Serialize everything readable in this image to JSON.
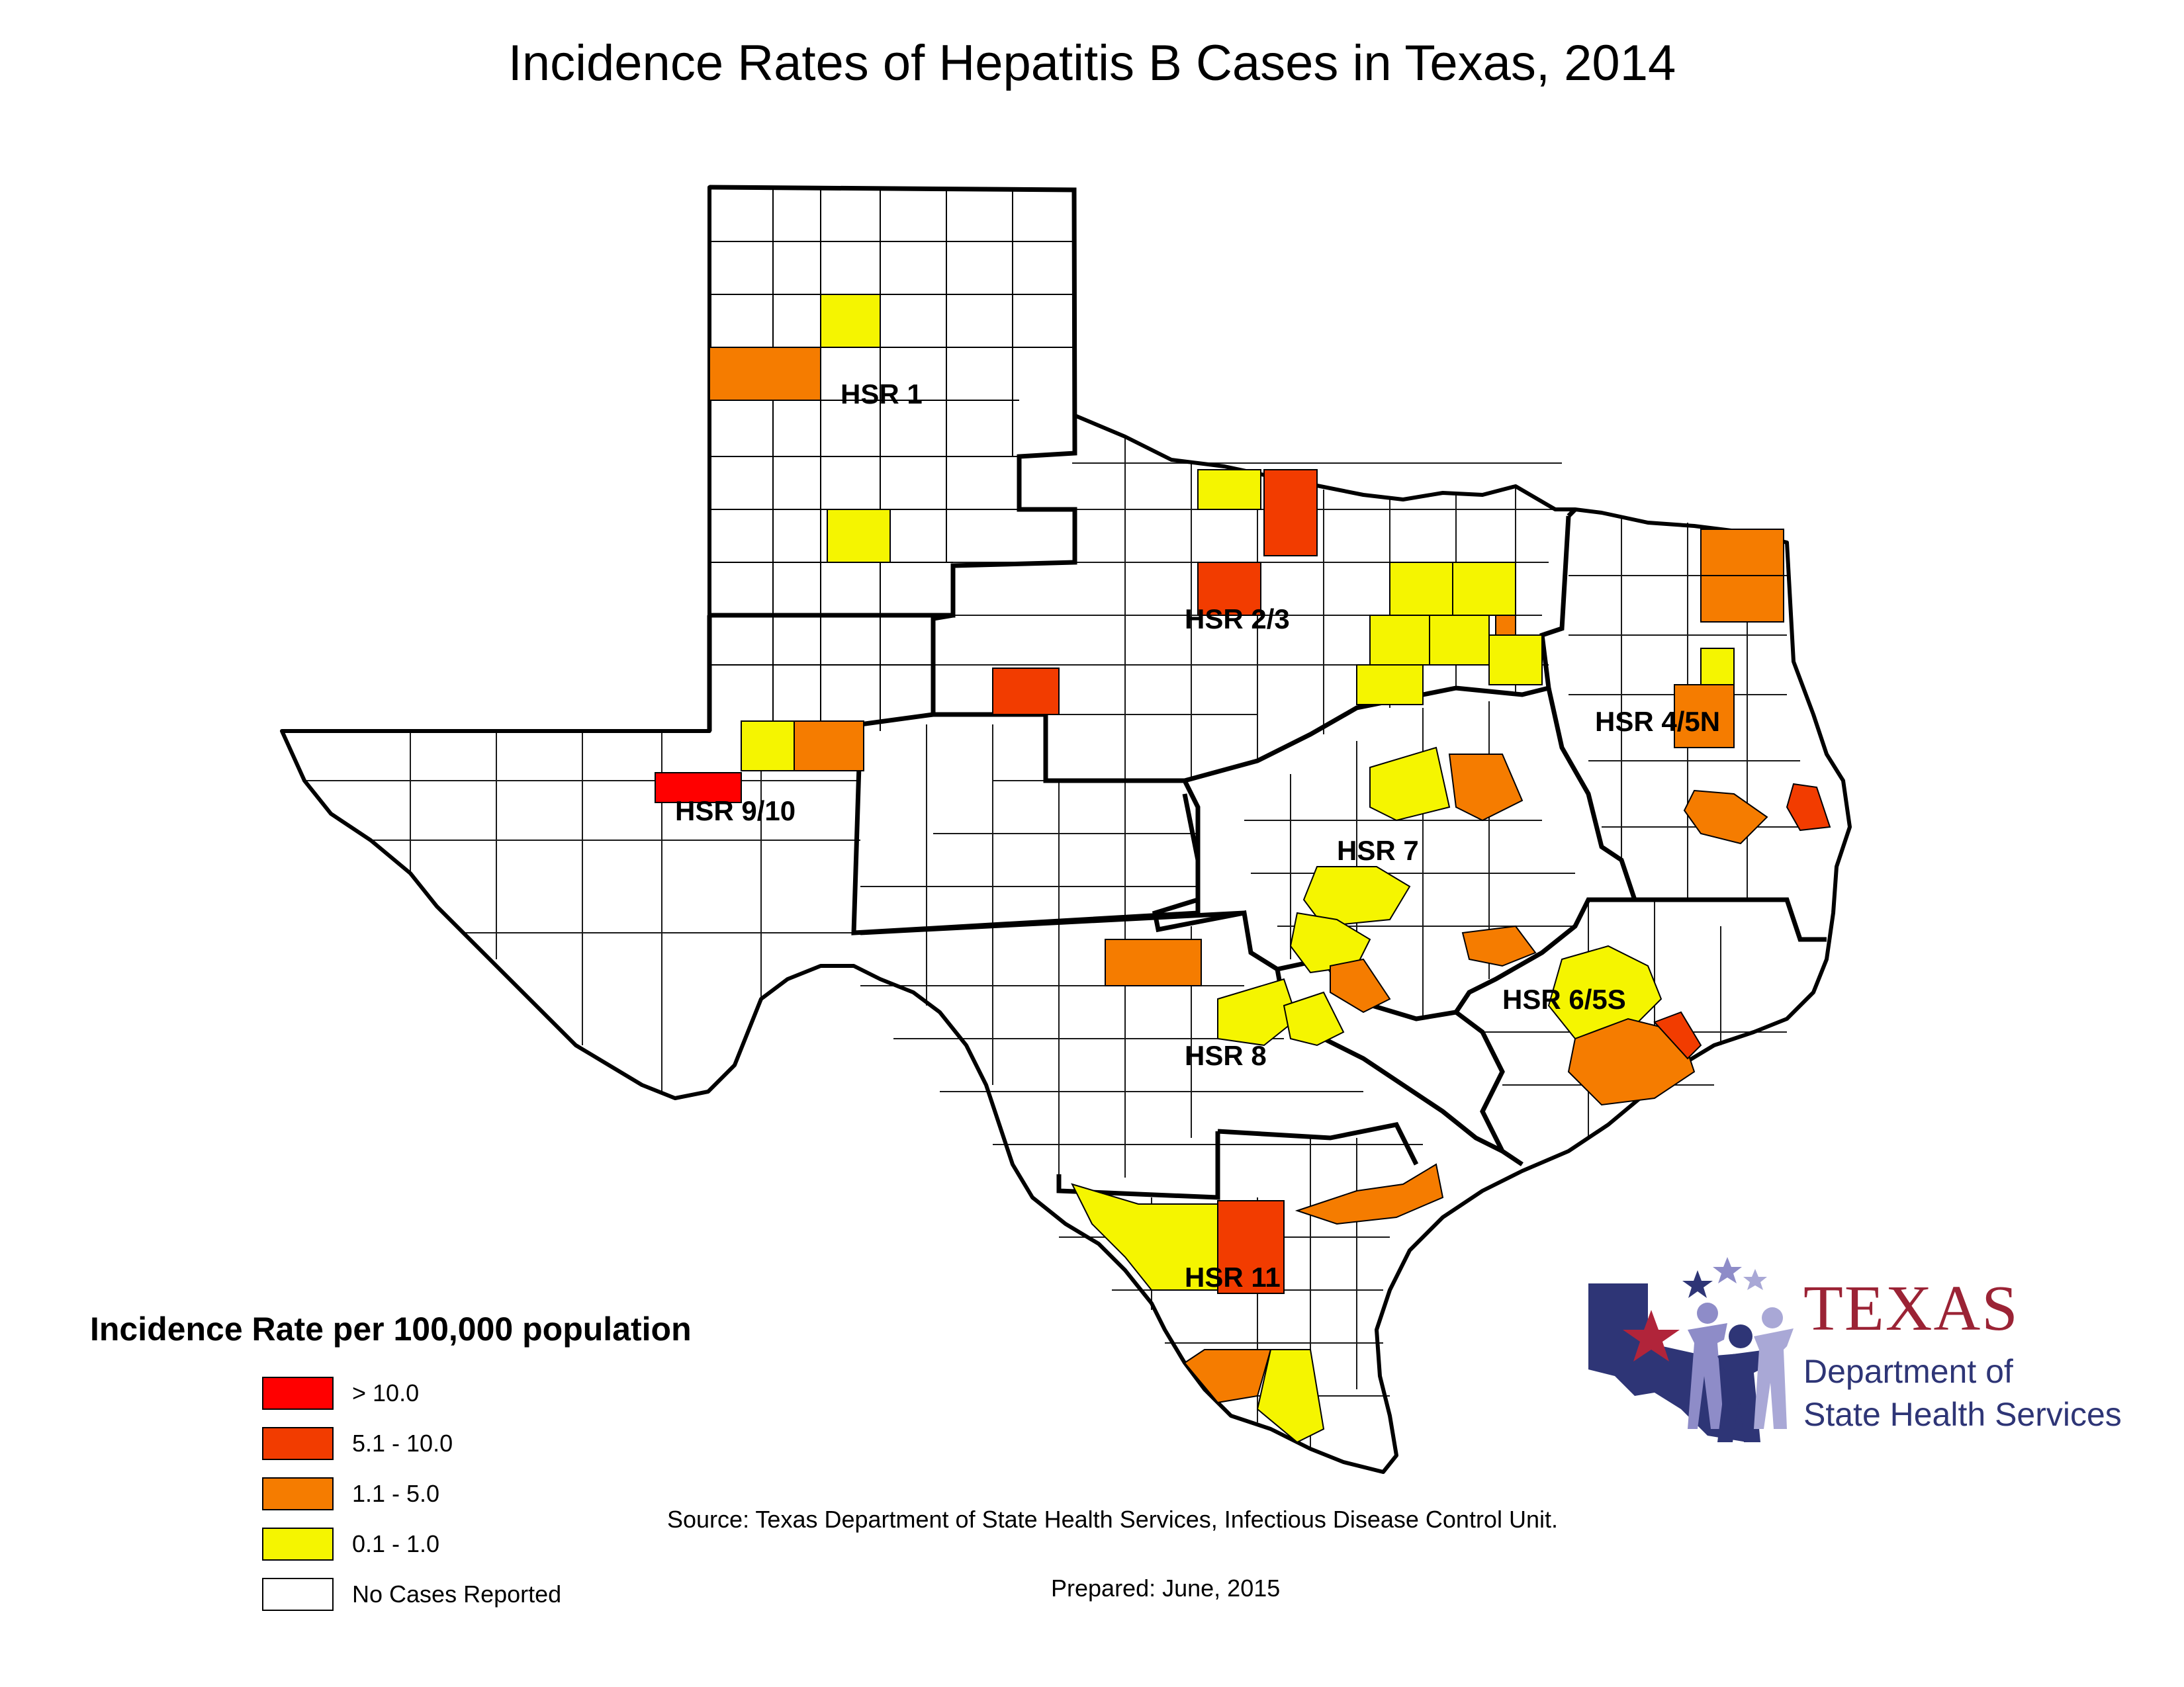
{
  "title": "Incidence Rates of Hepatitis B Cases in Texas, 2014",
  "regions": [
    {
      "id": "hsr1",
      "label": "HSR 1"
    },
    {
      "id": "hsr23",
      "label": "HSR 2/3"
    },
    {
      "id": "hsr45n",
      "label": "HSR 4/5N"
    },
    {
      "id": "hsr910",
      "label": "HSR 9/10"
    },
    {
      "id": "hsr7",
      "label": "HSR 7"
    },
    {
      "id": "hsr65s",
      "label": "HSR 6/5S"
    },
    {
      "id": "hsr8",
      "label": "HSR 8"
    },
    {
      "id": "hsr11",
      "label": "HSR 11"
    }
  ],
  "legend": {
    "title": "Incidence Rate per 100,000 population",
    "items": [
      {
        "label": "> 10.0",
        "color": "#ff0000"
      },
      {
        "label": "5.1 - 10.0",
        "color": "#f23c00"
      },
      {
        "label": "1.1 - 5.0",
        "color": "#f57c00"
      },
      {
        "label": "0.1 - 1.0",
        "color": "#f5f500"
      },
      {
        "label": "No Cases Reported",
        "color": "#ffffff"
      }
    ]
  },
  "source": "Source: Texas Department of State Health Services, Infectious Disease Control Unit.",
  "prepared": "Prepared: June, 2015",
  "logo": {
    "name": "TEXAS",
    "line1": "Department of",
    "line2": "State Health Services"
  }
}
